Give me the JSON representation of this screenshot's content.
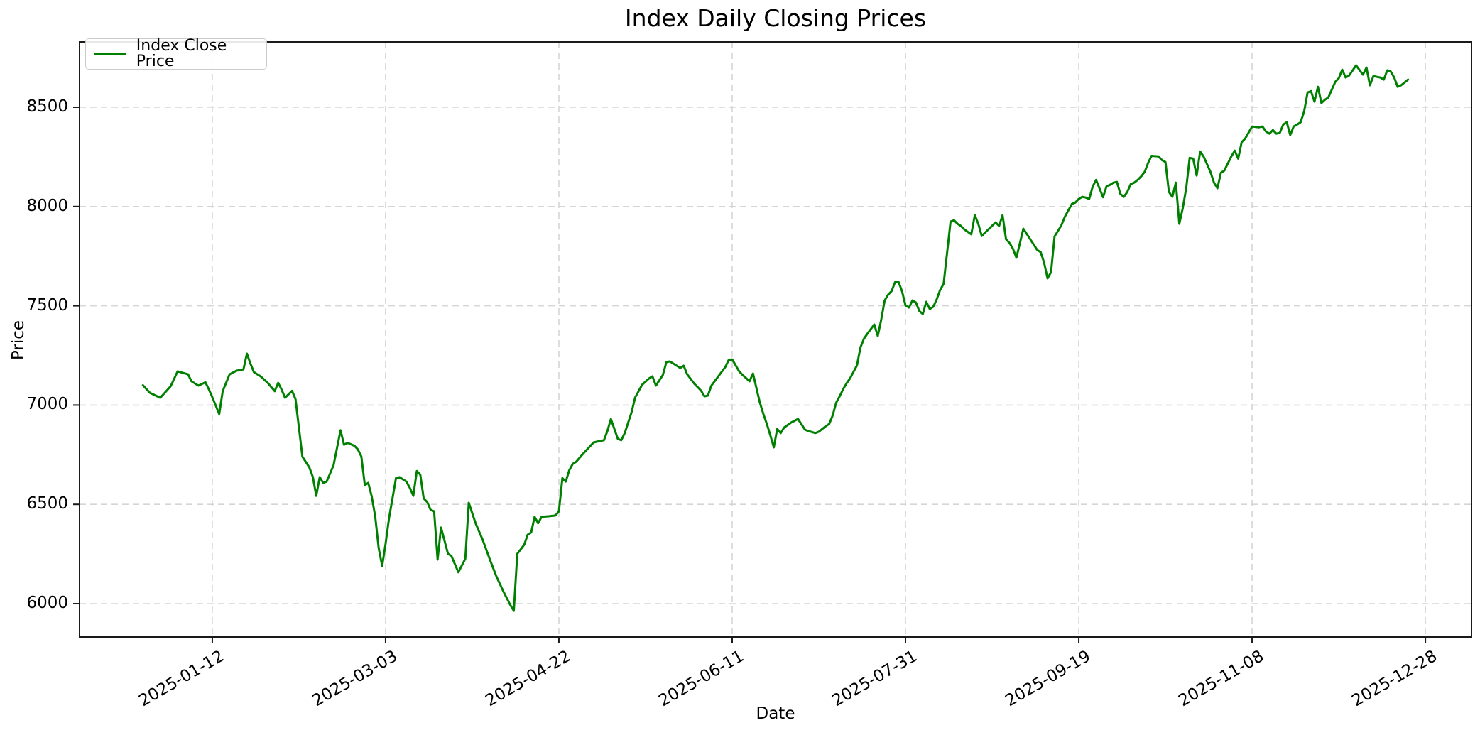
{
  "chart_data": {
    "type": "line",
    "title": "Index Daily Closing Prices",
    "xlabel": "Date",
    "ylabel": "Price",
    "legend_entries": [
      "Index Close Price"
    ],
    "line_color": "#008000",
    "grid": true,
    "legend_position": "upper left",
    "x_tick_labels": [
      "2025-01-12",
      "2025-03-03",
      "2025-04-22",
      "2025-06-11",
      "2025-07-31",
      "2025-09-19",
      "2025-11-08",
      "2025-12-28"
    ],
    "x_tick_positions_days": [
      20,
      70,
      120,
      170,
      220,
      270,
      320,
      370
    ],
    "y_ticks": [
      6000,
      6500,
      7000,
      7500,
      8000,
      8500
    ],
    "x_unit": "days since first plotted point (tick labels are dates, 50 days apart)",
    "x_axis_range_days": [
      -18.3,
      383.3
    ],
    "y_axis_range": [
      5832,
      8829
    ],
    "series": [
      {
        "name": "Index Close Price",
        "points": [
          [
            0,
            7100
          ],
          [
            2,
            7062
          ],
          [
            5,
            7037
          ],
          [
            8,
            7095
          ],
          [
            10,
            7170
          ],
          [
            13,
            7155
          ],
          [
            14,
            7120
          ],
          [
            16,
            7098
          ],
          [
            18,
            7115
          ],
          [
            19,
            7080
          ],
          [
            20,
            7040
          ],
          [
            22,
            6955
          ],
          [
            23,
            7070
          ],
          [
            25,
            7155
          ],
          [
            27,
            7173
          ],
          [
            29,
            7180
          ],
          [
            30,
            7259
          ],
          [
            31,
            7209
          ],
          [
            32,
            7166
          ],
          [
            34,
            7144
          ],
          [
            36,
            7112
          ],
          [
            38,
            7070
          ],
          [
            39,
            7112
          ],
          [
            40,
            7078
          ],
          [
            41,
            7037
          ],
          [
            43,
            7072
          ],
          [
            44,
            7030
          ],
          [
            46,
            6740
          ],
          [
            48,
            6686
          ],
          [
            49,
            6638
          ],
          [
            50,
            6543
          ],
          [
            51,
            6637
          ],
          [
            52,
            6608
          ],
          [
            53,
            6615
          ],
          [
            55,
            6697
          ],
          [
            57,
            6873
          ],
          [
            58,
            6800
          ],
          [
            59,
            6810
          ],
          [
            61,
            6795
          ],
          [
            62,
            6777
          ],
          [
            63,
            6741
          ],
          [
            64,
            6597
          ],
          [
            65,
            6608
          ],
          [
            66,
            6540
          ],
          [
            67,
            6440
          ],
          [
            68,
            6280
          ],
          [
            69,
            6190
          ],
          [
            70,
            6300
          ],
          [
            71,
            6430
          ],
          [
            73,
            6632
          ],
          [
            74,
            6637
          ],
          [
            76,
            6615
          ],
          [
            77,
            6583
          ],
          [
            78,
            6543
          ],
          [
            79,
            6668
          ],
          [
            80,
            6650
          ],
          [
            81,
            6530
          ],
          [
            82,
            6512
          ],
          [
            83,
            6472
          ],
          [
            84,
            6465
          ],
          [
            85,
            6222
          ],
          [
            86,
            6383
          ],
          [
            88,
            6251
          ],
          [
            89,
            6240
          ],
          [
            91,
            6158
          ],
          [
            93,
            6226
          ],
          [
            94,
            6508
          ],
          [
            96,
            6404
          ],
          [
            98,
            6322
          ],
          [
            100,
            6226
          ],
          [
            102,
            6136
          ],
          [
            104,
            6061
          ],
          [
            106,
            5993
          ],
          [
            107,
            5964
          ],
          [
            108,
            6251
          ],
          [
            110,
            6297
          ],
          [
            111,
            6347
          ],
          [
            112,
            6358
          ],
          [
            113,
            6437
          ],
          [
            114,
            6405
          ],
          [
            115,
            6437
          ],
          [
            117,
            6440
          ],
          [
            119,
            6444
          ],
          [
            120,
            6465
          ],
          [
            121,
            6632
          ],
          [
            122,
            6615
          ],
          [
            123,
            6672
          ],
          [
            124,
            6704
          ],
          [
            125,
            6715
          ],
          [
            127,
            6755
          ],
          [
            130,
            6812
          ],
          [
            131,
            6816
          ],
          [
            133,
            6823
          ],
          [
            134,
            6870
          ],
          [
            135,
            6930
          ],
          [
            137,
            6830
          ],
          [
            138,
            6823
          ],
          [
            139,
            6859
          ],
          [
            141,
            6966
          ],
          [
            142,
            7038
          ],
          [
            144,
            7102
          ],
          [
            146,
            7134
          ],
          [
            147,
            7145
          ],
          [
            148,
            7098
          ],
          [
            150,
            7152
          ],
          [
            151,
            7216
          ],
          [
            152,
            7220
          ],
          [
            154,
            7198
          ],
          [
            155,
            7187
          ],
          [
            156,
            7198
          ],
          [
            157,
            7156
          ],
          [
            159,
            7109
          ],
          [
            161,
            7073
          ],
          [
            162,
            7044
          ],
          [
            163,
            7048
          ],
          [
            164,
            7098
          ],
          [
            166,
            7145
          ],
          [
            168,
            7191
          ],
          [
            169,
            7227
          ],
          [
            170,
            7230
          ],
          [
            172,
            7170
          ],
          [
            173,
            7152
          ],
          [
            175,
            7120
          ],
          [
            176,
            7159
          ],
          [
            178,
            7012
          ],
          [
            179,
            6955
          ],
          [
            180,
            6905
          ],
          [
            181,
            6848
          ],
          [
            182,
            6787
          ],
          [
            183,
            6880
          ],
          [
            184,
            6859
          ],
          [
            185,
            6887
          ],
          [
            187,
            6912
          ],
          [
            189,
            6930
          ],
          [
            191,
            6876
          ],
          [
            192,
            6869
          ],
          [
            194,
            6859
          ],
          [
            195,
            6866
          ],
          [
            197,
            6894
          ],
          [
            198,
            6905
          ],
          [
            199,
            6948
          ],
          [
            200,
            7012
          ],
          [
            201,
            7044
          ],
          [
            202,
            7080
          ],
          [
            203,
            7109
          ],
          [
            204,
            7134
          ],
          [
            206,
            7200
          ],
          [
            207,
            7290
          ],
          [
            208,
            7334
          ],
          [
            209,
            7359
          ],
          [
            211,
            7406
          ],
          [
            212,
            7348
          ],
          [
            213,
            7431
          ],
          [
            214,
            7527
          ],
          [
            215,
            7556
          ],
          [
            216,
            7574
          ],
          [
            217,
            7620
          ],
          [
            218,
            7620
          ],
          [
            219,
            7574
          ],
          [
            220,
            7502
          ],
          [
            221,
            7491
          ],
          [
            222,
            7527
          ],
          [
            223,
            7517
          ],
          [
            224,
            7474
          ],
          [
            225,
            7459
          ],
          [
            226,
            7520
          ],
          [
            227,
            7484
          ],
          [
            228,
            7495
          ],
          [
            229,
            7531
          ],
          [
            230,
            7580
          ],
          [
            231,
            7610
          ],
          [
            233,
            7924
          ],
          [
            234,
            7931
          ],
          [
            235,
            7913
          ],
          [
            236,
            7902
          ],
          [
            237,
            7884
          ],
          [
            239,
            7860
          ],
          [
            240,
            7956
          ],
          [
            241,
            7913
          ],
          [
            242,
            7852
          ],
          [
            244,
            7886
          ],
          [
            246,
            7920
          ],
          [
            247,
            7902
          ],
          [
            248,
            7956
          ],
          [
            249,
            7835
          ],
          [
            250,
            7817
          ],
          [
            251,
            7788
          ],
          [
            252,
            7742
          ],
          [
            254,
            7888
          ],
          [
            256,
            7835
          ],
          [
            258,
            7781
          ],
          [
            259,
            7770
          ],
          [
            260,
            7717
          ],
          [
            261,
            7638
          ],
          [
            262,
            7670
          ],
          [
            263,
            7849
          ],
          [
            265,
            7906
          ],
          [
            266,
            7949
          ],
          [
            268,
            8013
          ],
          [
            269,
            8020
          ],
          [
            270,
            8038
          ],
          [
            271,
            8049
          ],
          [
            272,
            8045
          ],
          [
            273,
            8038
          ],
          [
            274,
            8100
          ],
          [
            275,
            8134
          ],
          [
            277,
            8047
          ],
          [
            278,
            8102
          ],
          [
            279,
            8109
          ],
          [
            280,
            8120
          ],
          [
            281,
            8124
          ],
          [
            282,
            8063
          ],
          [
            283,
            8049
          ],
          [
            284,
            8074
          ],
          [
            285,
            8113
          ],
          [
            286,
            8120
          ],
          [
            287,
            8134
          ],
          [
            288,
            8152
          ],
          [
            289,
            8174
          ],
          [
            290,
            8220
          ],
          [
            291,
            8255
          ],
          [
            293,
            8252
          ],
          [
            294,
            8234
          ],
          [
            295,
            8224
          ],
          [
            296,
            8074
          ],
          [
            297,
            8049
          ],
          [
            298,
            8120
          ],
          [
            299,
            7913
          ],
          [
            300,
            7992
          ],
          [
            301,
            8092
          ],
          [
            302,
            8245
          ],
          [
            303,
            8241
          ],
          [
            304,
            8156
          ],
          [
            305,
            8277
          ],
          [
            306,
            8252
          ],
          [
            308,
            8174
          ],
          [
            309,
            8120
          ],
          [
            310,
            8092
          ],
          [
            311,
            8170
          ],
          [
            312,
            8181
          ],
          [
            314,
            8252
          ],
          [
            315,
            8281
          ],
          [
            316,
            8241
          ],
          [
            317,
            8324
          ],
          [
            318,
            8342
          ],
          [
            320,
            8403
          ],
          [
            322,
            8399
          ],
          [
            323,
            8403
          ],
          [
            324,
            8378
          ],
          [
            325,
            8367
          ],
          [
            326,
            8385
          ],
          [
            327,
            8367
          ],
          [
            328,
            8371
          ],
          [
            329,
            8413
          ],
          [
            330,
            8424
          ],
          [
            331,
            8360
          ],
          [
            332,
            8403
          ],
          [
            333,
            8413
          ],
          [
            334,
            8424
          ],
          [
            335,
            8478
          ],
          [
            336,
            8574
          ],
          [
            337,
            8581
          ],
          [
            338,
            8528
          ],
          [
            339,
            8603
          ],
          [
            340,
            8521
          ],
          [
            341,
            8538
          ],
          [
            342,
            8549
          ],
          [
            344,
            8628
          ],
          [
            345,
            8646
          ],
          [
            346,
            8689
          ],
          [
            347,
            8650
          ],
          [
            348,
            8660
          ],
          [
            350,
            8711
          ],
          [
            352,
            8664
          ],
          [
            353,
            8700
          ],
          [
            354,
            8611
          ],
          [
            355,
            8657
          ],
          [
            356,
            8653
          ],
          [
            357,
            8650
          ],
          [
            358,
            8639
          ],
          [
            359,
            8686
          ],
          [
            360,
            8680
          ],
          [
            361,
            8650
          ],
          [
            362,
            8603
          ],
          [
            363,
            8611
          ],
          [
            364,
            8625
          ],
          [
            365,
            8639
          ]
        ]
      }
    ]
  }
}
